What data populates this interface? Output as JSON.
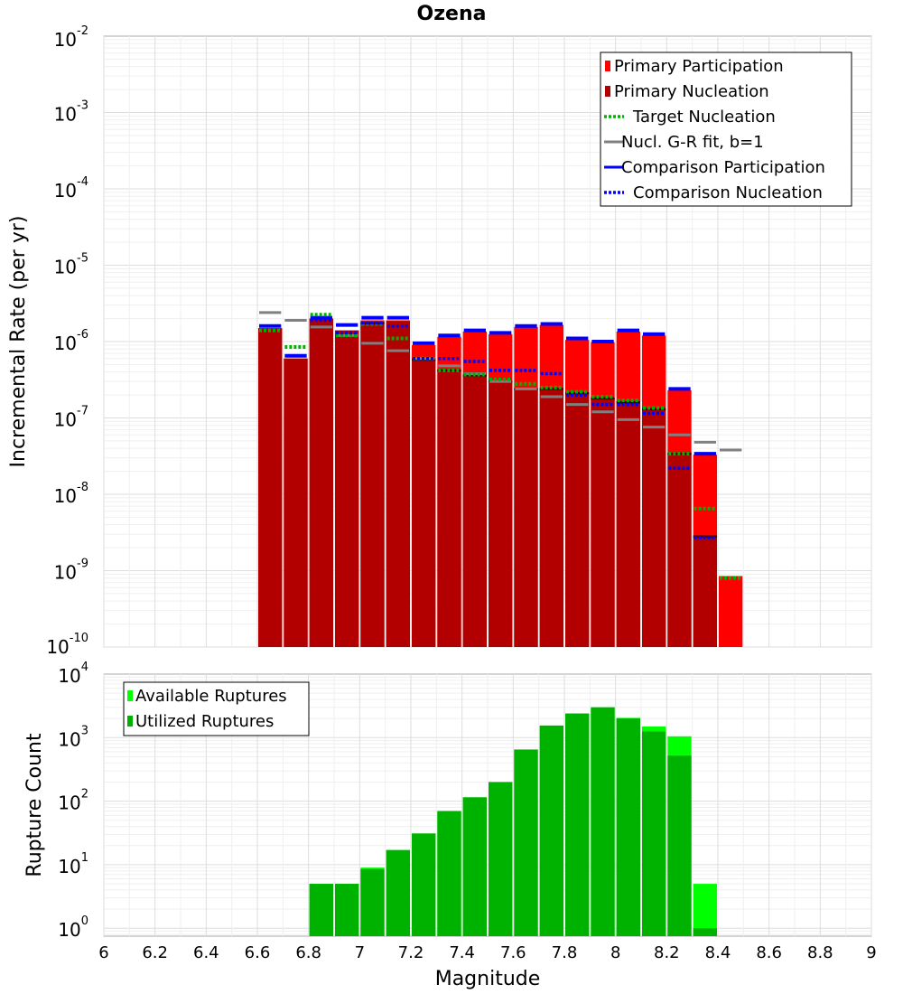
{
  "chart_data": [
    {
      "type": "bar",
      "title": "Ozena",
      "xlabel": "",
      "ylabel": "Incremental Rate (per yr)",
      "y_scale": "log",
      "xlim": [
        6,
        9
      ],
      "ylim": [
        1e-10,
        0.01
      ],
      "y_ticks": [
        {
          "base": "10",
          "exp": "-10",
          "value": 1e-10
        },
        {
          "base": "10",
          "exp": "-9",
          "value": 1e-09
        },
        {
          "base": "10",
          "exp": "-8",
          "value": 1e-08
        },
        {
          "base": "10",
          "exp": "-7",
          "value": 1e-07
        },
        {
          "base": "10",
          "exp": "-6",
          "value": 1e-06
        },
        {
          "base": "10",
          "exp": "-5",
          "value": 1e-05
        },
        {
          "base": "10",
          "exp": "-4",
          "value": 0.0001
        },
        {
          "base": "10",
          "exp": "-3",
          "value": 0.001
        },
        {
          "base": "10",
          "exp": "-2",
          "value": 0.01
        }
      ],
      "grid": true,
      "legend_position": "top-right",
      "bin_width": 0.1,
      "x": [
        6.65,
        6.75,
        6.85,
        6.95,
        7.05,
        7.15,
        7.25,
        7.35,
        7.45,
        7.55,
        7.65,
        7.75,
        7.85,
        7.95,
        8.05,
        8.15,
        8.25,
        8.35,
        8.45
      ],
      "series": [
        {
          "name": "Primary Participation",
          "color": "#ff0000",
          "style": "bar",
          "values": [
            1.5e-06,
            6e-07,
            2e-06,
            1.4e-06,
            1.9e-06,
            1.9e-06,
            9e-07,
            1.15e-06,
            1.35e-06,
            1.25e-06,
            1.55e-06,
            1.65e-06,
            1.05e-06,
            9.8e-07,
            1.35e-06,
            1.2e-06,
            2.3e-07,
            3.3e-08,
            8.5e-10
          ]
        },
        {
          "name": "Primary Nucleation",
          "color": "#b20000",
          "style": "bar",
          "values": [
            1.5e-06,
            6e-07,
            2e-06,
            1.4e-06,
            1.75e-06,
            1.85e-06,
            5.8e-07,
            4.2e-07,
            3.6e-07,
            3e-07,
            2.4e-07,
            2.4e-07,
            2.1e-07,
            1.8e-07,
            1.6e-07,
            1.3e-07,
            3.4e-08,
            2.8e-09,
            null
          ]
        },
        {
          "name": "Target Nucleation",
          "color": "#00b200",
          "style": "dotted",
          "values": [
            1.4e-06,
            8.5e-07,
            2.25e-06,
            1.2e-06,
            1.7e-06,
            1.1e-06,
            6e-07,
            4.2e-07,
            3.7e-07,
            3.2e-07,
            2.8e-07,
            2.5e-07,
            2.2e-07,
            1.9e-07,
            1.7e-07,
            1.35e-07,
            3.4e-08,
            6.5e-09,
            8e-10
          ]
        },
        {
          "name": "Nucl. G-R fit, b=1",
          "color": "#808080",
          "style": "solid",
          "values": [
            2.4e-06,
            1.9e-06,
            1.55e-06,
            1.2e-06,
            9.5e-07,
            7.6e-07,
            6e-07,
            4.8e-07,
            3.8e-07,
            3e-07,
            2.4e-07,
            1.9e-07,
            1.5e-07,
            1.2e-07,
            9.5e-08,
            7.6e-08,
            6e-08,
            4.8e-08,
            3.8e-08
          ]
        },
        {
          "name": "Comparison Participation",
          "color": "#0000ff",
          "style": "solid",
          "values": [
            1.6e-06,
            6.5e-07,
            2.05e-06,
            1.65e-06,
            2.05e-06,
            2.05e-06,
            9.5e-07,
            1.2e-06,
            1.4e-06,
            1.3e-06,
            1.6e-06,
            1.7e-06,
            1.1e-06,
            1e-06,
            1.4e-06,
            1.25e-06,
            2.4e-07,
            3.4e-08,
            null
          ]
        },
        {
          "name": "Comparison Nucleation",
          "color": "#0000ff",
          "style": "dotted",
          "values": [
            null,
            null,
            1.9e-06,
            1.3e-06,
            1.75e-06,
            1.6e-06,
            6e-07,
            6e-07,
            5.5e-07,
            4.2e-07,
            4.2e-07,
            3.8e-07,
            2e-07,
            1.5e-07,
            1.5e-07,
            1.15e-07,
            2.2e-08,
            2.7e-09,
            null
          ]
        }
      ]
    },
    {
      "type": "bar",
      "title": "",
      "xlabel": "Magnitude",
      "ylabel": "Rupture Count",
      "y_scale": "log",
      "xlim": [
        6,
        9
      ],
      "ylim": [
        0.75,
        10000
      ],
      "x_ticks": [
        "6",
        "6.2",
        "6.4",
        "6.6",
        "6.8",
        "7",
        "7.2",
        "7.4",
        "7.6",
        "7.8",
        "8",
        "8.2",
        "8.4",
        "8.6",
        "8.8",
        "9"
      ],
      "y_ticks": [
        {
          "base": "10",
          "exp": "0",
          "value": 1
        },
        {
          "base": "10",
          "exp": "1",
          "value": 10
        },
        {
          "base": "10",
          "exp": "2",
          "value": 100
        },
        {
          "base": "10",
          "exp": "3",
          "value": 1000
        },
        {
          "base": "10",
          "exp": "4",
          "value": 10000
        }
      ],
      "grid": true,
      "legend_position": "top-left",
      "bin_width": 0.1,
      "x": [
        6.85,
        6.95,
        7.05,
        7.15,
        7.25,
        7.35,
        7.45,
        7.55,
        7.65,
        7.75,
        7.85,
        7.95,
        8.05,
        8.15,
        8.25,
        8.35
      ],
      "series": [
        {
          "name": "Available Ruptures",
          "color": "#00ff00",
          "values": [
            5,
            5,
            9,
            17,
            31,
            70,
            115,
            200,
            650,
            1550,
            2400,
            3000,
            2050,
            1500,
            1050,
            5
          ]
        },
        {
          "name": "Utilized Ruptures",
          "color": "#00b200",
          "values": [
            5,
            5,
            8.5,
            17,
            31,
            70,
            115,
            200,
            650,
            1550,
            2400,
            3000,
            2000,
            1250,
            520,
            1
          ]
        }
      ]
    }
  ]
}
